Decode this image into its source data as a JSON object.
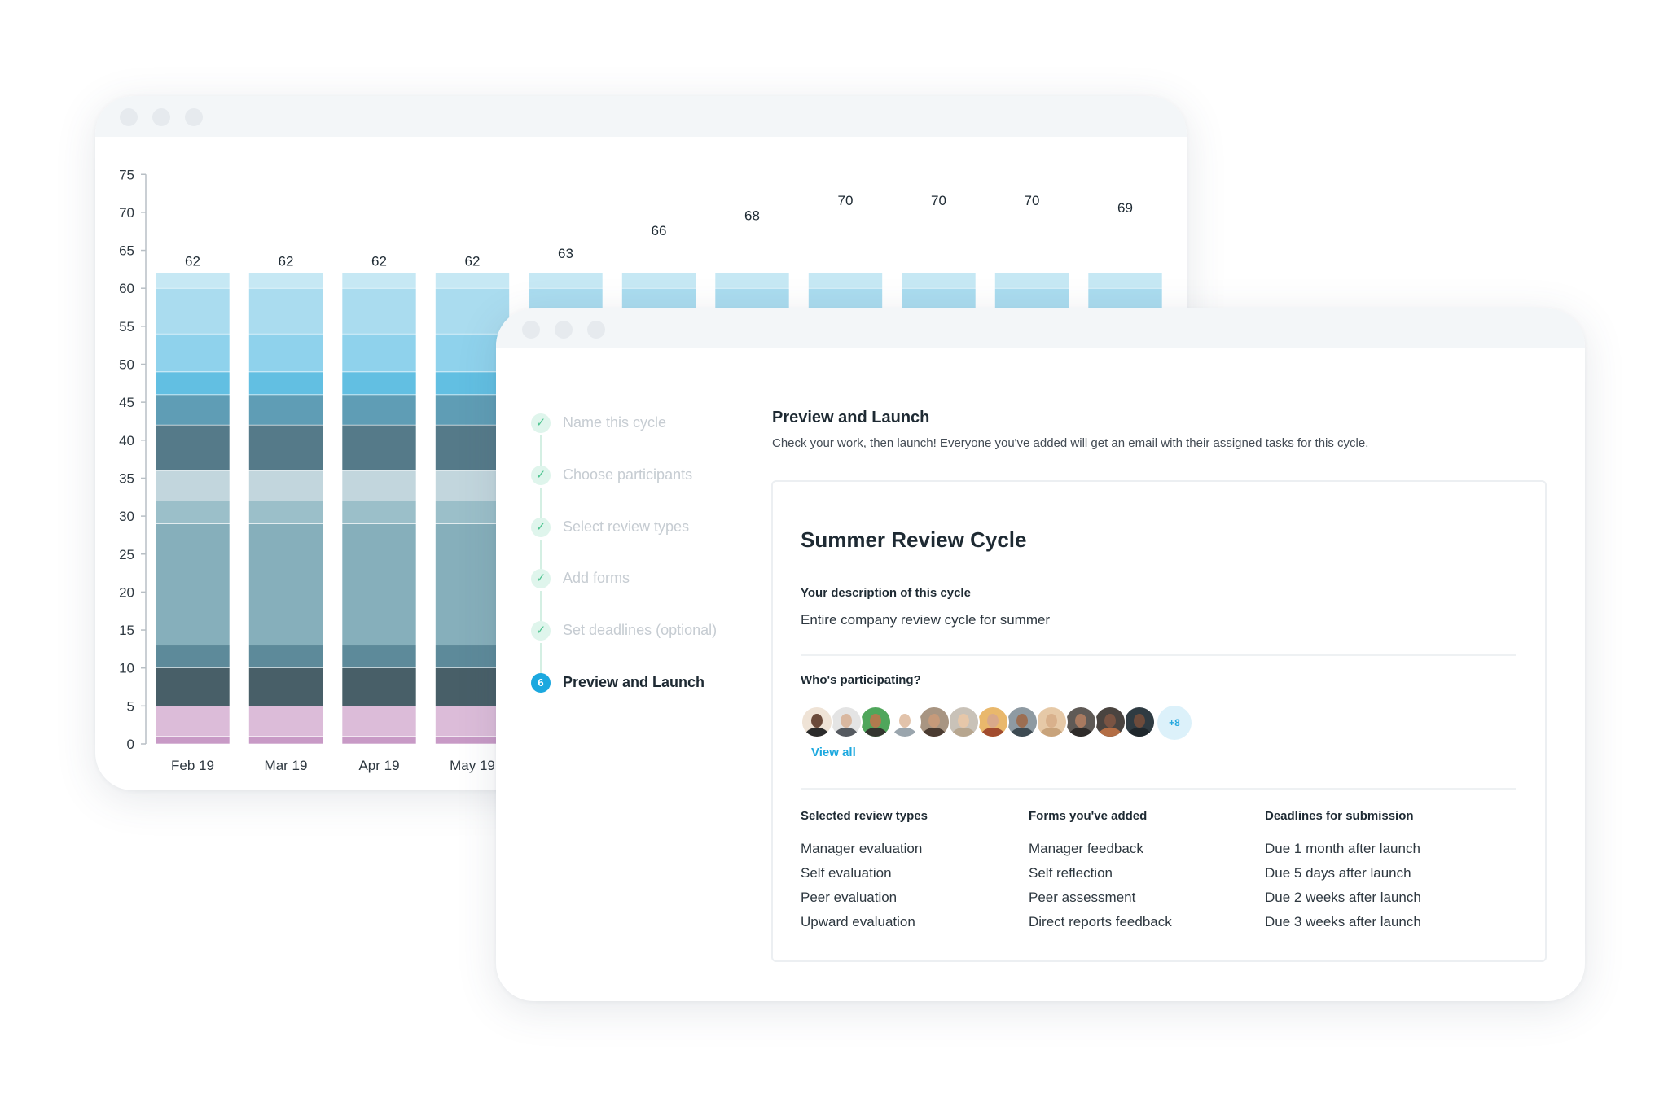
{
  "colors": {
    "segments": [
      "#c89ac6",
      "#dcbcd9",
      "#485f68",
      "#5d8a9a",
      "#86afbb",
      "#9bbfc9",
      "#c2d6dd",
      "#557a89",
      "#5f9db5",
      "#62bfe2",
      "#8fd2ec",
      "#aadcef",
      "#c6e8f4"
    ],
    "accent": "#1ba8df",
    "check": "#4cc48f"
  },
  "chart_data": {
    "type": "bar",
    "stacked": true,
    "categories": [
      "Feb 19",
      "Mar 19",
      "Apr 19",
      "May 19",
      "",
      "",
      "",
      "",
      "",
      "",
      ""
    ],
    "totals": [
      62,
      62,
      62,
      62,
      63,
      66,
      68,
      70,
      70,
      70,
      69
    ],
    "total_labels": [
      "62",
      "62",
      "62",
      "62",
      "63",
      "66",
      "68",
      "70",
      "70",
      "70",
      "69"
    ],
    "segments": [
      1,
      4,
      5,
      3,
      16,
      3,
      4,
      6,
      4,
      3,
      5,
      6,
      2
    ],
    "yticks": [
      0,
      5,
      10,
      15,
      20,
      25,
      30,
      35,
      40,
      45,
      50,
      55,
      60,
      65,
      70,
      75
    ],
    "ylim": [
      0,
      75
    ],
    "grid": false
  },
  "steps": [
    {
      "label": "Name this cycle",
      "state": "done"
    },
    {
      "label": "Choose participants",
      "state": "done"
    },
    {
      "label": "Select review types",
      "state": "done"
    },
    {
      "label": "Add forms",
      "state": "done"
    },
    {
      "label": "Set deadlines (optional)",
      "state": "done"
    },
    {
      "label": "Preview and Launch",
      "state": "active",
      "number": "6"
    }
  ],
  "icons": {
    "check": "✓"
  },
  "main": {
    "heading": "Preview and Launch",
    "subtitle": "Check your work, then launch! Everyone you've added will get an email with their assigned tasks for this cycle."
  },
  "card": {
    "title": "Summer Review Cycle",
    "description_label": "Your description of this cycle",
    "description": "Entire company review cycle for summer",
    "participants_label": "Who's participating?",
    "more_count": "+8",
    "view_all": "View all",
    "avatar_icon": "person-avatar-icon",
    "avatars": [
      {
        "bg": "#efe3d6",
        "skin": "#6b4a3a",
        "shirt": "#2b2b2b"
      },
      {
        "bg": "#e4e4e4",
        "skin": "#d9b8a0",
        "shirt": "#555a60"
      },
      {
        "bg": "#4fa65b",
        "skin": "#b07a4e",
        "shirt": "#33352f"
      },
      {
        "bg": "#ffffff",
        "skin": "#e2c3ab",
        "shirt": "#9aa5ad"
      },
      {
        "bg": "#a89582",
        "skin": "#c69a7a",
        "shirt": "#4a3b31"
      },
      {
        "bg": "#c9c2b8",
        "skin": "#e6c7a9",
        "shirt": "#b7a68f"
      },
      {
        "bg": "#e9b86c",
        "skin": "#d9a98a",
        "shirt": "#a24c2e"
      },
      {
        "bg": "#8e9aa2",
        "skin": "#9c6e52",
        "shirt": "#3d4a52"
      },
      {
        "bg": "#e6c9a7",
        "skin": "#d9b18c",
        "shirt": "#c8a37b"
      },
      {
        "bg": "#5f5a56",
        "skin": "#a87a60",
        "shirt": "#2e2b29"
      },
      {
        "bg": "#4a4440",
        "skin": "#7a5443",
        "shirt": "#b36d44"
      },
      {
        "bg": "#2f3b42",
        "skin": "#6d4b3b",
        "shirt": "#1f272c"
      }
    ],
    "columns": [
      {
        "heading": "Selected review types",
        "items": [
          "Manager evaluation",
          "Self evaluation",
          "Peer evaluation",
          "Upward evaluation"
        ]
      },
      {
        "heading": "Forms you've added",
        "items": [
          "Manager feedback",
          "Self reflection",
          "Peer assessment",
          "Direct reports feedback"
        ]
      },
      {
        "heading": "Deadlines for submission",
        "items": [
          "Due 1 month after launch",
          "Due 5 days after launch",
          "Due 2 weeks after launch",
          "Due 3 weeks after launch"
        ]
      }
    ]
  }
}
